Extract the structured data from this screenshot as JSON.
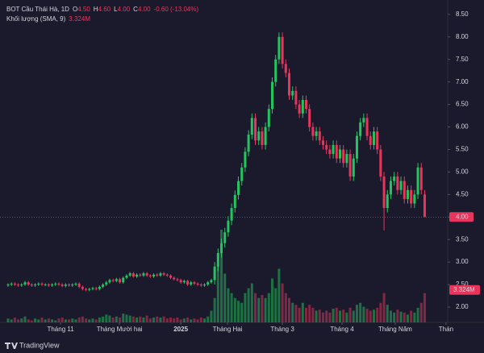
{
  "chart_data": {
    "type": "candlestick",
    "header": {
      "symbol": "BOT Cầu Thái Hà, 1D",
      "items": [
        {
          "key": "O",
          "value": "4.50"
        },
        {
          "key": "H",
          "value": "4.60"
        },
        {
          "key": "L",
          "value": "4.00"
        },
        {
          "key": "C",
          "value": "4.00"
        }
      ],
      "change": "-0.60 (-13.04%)",
      "volume_title": "Khối lượng (SMA, 9)"
    },
    "colors": {
      "up": "#22c55e",
      "down": "#e8355c",
      "background": "#1b1a2c"
    },
    "open": [
      2.48,
      2.5,
      2.52,
      2.5,
      2.48,
      2.5,
      2.55,
      2.5,
      2.48,
      2.5,
      2.52,
      2.5,
      2.5,
      2.48,
      2.5,
      2.52,
      2.5,
      2.47,
      2.5,
      2.48,
      2.5,
      2.52,
      2.45,
      2.4,
      2.38,
      2.4,
      2.42,
      2.4,
      2.45,
      2.5,
      2.55,
      2.6,
      2.58,
      2.62,
      2.55,
      2.65,
      2.7,
      2.75,
      2.68,
      2.72,
      2.7,
      2.75,
      2.7,
      2.68,
      2.72,
      2.7,
      2.75,
      2.72,
      2.7,
      2.65,
      2.62,
      2.6,
      2.55,
      2.58,
      2.5,
      2.55,
      2.52,
      2.5,
      2.48,
      2.5,
      2.55,
      2.6,
      2.9,
      3.2,
      3.42,
      3.66,
      3.92,
      4.2,
      4.49,
      4.8,
      5.1,
      5.45,
      5.83,
      6.2,
      5.7,
      5.9,
      5.6,
      6.0,
      6.4,
      7.0,
      7.5,
      8.0,
      7.4,
      7.2,
      6.7,
      6.8,
      6.5,
      6.3,
      6.6,
      6.4,
      6.0,
      5.8,
      5.9,
      5.7,
      5.6,
      5.5,
      5.4,
      5.6,
      5.3,
      5.5,
      5.2,
      5.4,
      4.9,
      5.3,
      5.8,
      6.1,
      6.2,
      5.8,
      5.6,
      5.9,
      5.5,
      4.9,
      4.2,
      4.5,
      4.8,
      4.9,
      4.6,
      4.8,
      4.4,
      4.6,
      4.3,
      4.5,
      5.1,
      4.5
    ],
    "high": [
      2.53,
      2.55,
      2.55,
      2.53,
      2.53,
      2.58,
      2.58,
      2.53,
      2.53,
      2.55,
      2.55,
      2.53,
      2.53,
      2.53,
      2.55,
      2.55,
      2.53,
      2.53,
      2.53,
      2.53,
      2.55,
      2.55,
      2.48,
      2.43,
      2.43,
      2.45,
      2.45,
      2.48,
      2.53,
      2.58,
      2.63,
      2.63,
      2.65,
      2.65,
      2.68,
      2.73,
      2.78,
      2.78,
      2.75,
      2.75,
      2.78,
      2.78,
      2.73,
      2.75,
      2.75,
      2.78,
      2.78,
      2.75,
      2.73,
      2.68,
      2.65,
      2.63,
      2.61,
      2.61,
      2.58,
      2.58,
      2.55,
      2.53,
      2.53,
      2.58,
      2.63,
      3.0,
      3.3,
      3.52,
      3.76,
      4.02,
      4.3,
      4.59,
      4.9,
      5.2,
      5.55,
      5.93,
      6.3,
      6.3,
      6.0,
      6.0,
      6.1,
      6.5,
      7.1,
      7.6,
      8.1,
      8.1,
      7.5,
      7.3,
      6.9,
      6.9,
      6.6,
      6.7,
      6.7,
      6.5,
      6.1,
      6.0,
      6.0,
      5.8,
      5.7,
      5.6,
      5.7,
      5.7,
      5.6,
      5.6,
      5.5,
      5.5,
      5.4,
      5.9,
      6.2,
      6.3,
      6.3,
      5.9,
      6.0,
      6.0,
      5.6,
      5.0,
      4.6,
      4.9,
      5.0,
      5.0,
      4.9,
      4.9,
      4.7,
      4.7,
      4.6,
      5.2,
      5.2,
      4.6
    ],
    "low": [
      2.45,
      2.47,
      2.47,
      2.45,
      2.45,
      2.47,
      2.47,
      2.45,
      2.45,
      2.47,
      2.47,
      2.47,
      2.45,
      2.45,
      2.47,
      2.47,
      2.44,
      2.44,
      2.45,
      2.45,
      2.47,
      2.42,
      2.37,
      2.35,
      2.35,
      2.37,
      2.37,
      2.37,
      2.42,
      2.47,
      2.52,
      2.55,
      2.55,
      2.52,
      2.52,
      2.62,
      2.67,
      2.65,
      2.65,
      2.67,
      2.67,
      2.67,
      2.65,
      2.65,
      2.67,
      2.67,
      2.69,
      2.67,
      2.62,
      2.59,
      2.57,
      2.52,
      2.52,
      2.47,
      2.47,
      2.49,
      2.47,
      2.45,
      2.45,
      2.47,
      2.52,
      2.5,
      2.8,
      3.1,
      3.32,
      3.56,
      3.82,
      4.1,
      4.39,
      4.7,
      5.0,
      5.35,
      5.73,
      5.6,
      5.6,
      5.5,
      5.5,
      5.9,
      6.3,
      6.9,
      7.4,
      7.3,
      7.1,
      6.6,
      6.6,
      6.4,
      6.2,
      6.2,
      6.3,
      5.9,
      5.7,
      5.7,
      5.6,
      5.5,
      5.4,
      5.3,
      5.3,
      5.2,
      5.2,
      5.1,
      5.1,
      4.8,
      4.8,
      5.2,
      5.7,
      6.0,
      5.7,
      5.5,
      5.5,
      5.4,
      4.8,
      3.7,
      4.1,
      4.4,
      4.7,
      4.5,
      4.5,
      4.3,
      4.3,
      4.2,
      4.2,
      4.4,
      4.5,
      4.0
    ],
    "close": [
      2.5,
      2.52,
      2.5,
      2.48,
      2.5,
      2.55,
      2.5,
      2.48,
      2.5,
      2.52,
      2.5,
      2.5,
      2.48,
      2.5,
      2.52,
      2.5,
      2.47,
      2.5,
      2.48,
      2.5,
      2.52,
      2.45,
      2.4,
      2.38,
      2.4,
      2.42,
      2.4,
      2.45,
      2.5,
      2.55,
      2.6,
      2.58,
      2.62,
      2.55,
      2.65,
      2.7,
      2.75,
      2.68,
      2.72,
      2.7,
      2.75,
      2.7,
      2.68,
      2.72,
      2.7,
      2.75,
      2.72,
      2.7,
      2.65,
      2.62,
      2.6,
      2.55,
      2.58,
      2.5,
      2.55,
      2.52,
      2.5,
      2.48,
      2.5,
      2.55,
      2.6,
      2.9,
      3.2,
      3.42,
      3.66,
      3.92,
      4.2,
      4.49,
      4.8,
      5.1,
      5.45,
      5.83,
      6.2,
      5.7,
      5.9,
      5.6,
      6.0,
      6.4,
      7.0,
      7.5,
      8.0,
      7.4,
      7.2,
      6.7,
      6.8,
      6.5,
      6.3,
      6.6,
      6.4,
      6.0,
      5.8,
      5.9,
      5.7,
      5.6,
      5.5,
      5.4,
      5.6,
      5.3,
      5.5,
      5.2,
      5.4,
      4.9,
      5.3,
      5.8,
      6.1,
      6.2,
      5.8,
      5.6,
      5.9,
      5.5,
      4.9,
      4.2,
      4.5,
      4.8,
      4.9,
      4.6,
      4.8,
      4.4,
      4.6,
      4.3,
      4.5,
      5.1,
      4.6,
      4.0
    ],
    "volume": [
      0.4,
      0.3,
      0.5,
      0.3,
      0.4,
      0.6,
      0.3,
      0.2,
      0.4,
      0.3,
      0.5,
      0.3,
      0.4,
      0.3,
      0.2,
      0.4,
      0.5,
      0.3,
      0.3,
      0.4,
      0.3,
      0.5,
      0.6,
      0.4,
      0.3,
      0.4,
      0.3,
      0.5,
      0.6,
      0.8,
      0.7,
      0.5,
      0.6,
      0.5,
      0.9,
      0.8,
      0.7,
      0.6,
      0.5,
      0.6,
      0.5,
      0.7,
      0.4,
      0.5,
      0.6,
      0.5,
      0.6,
      0.4,
      0.5,
      0.4,
      0.5,
      0.3,
      0.4,
      0.5,
      0.3,
      0.4,
      0.3,
      0.5,
      0.4,
      0.6,
      1.2,
      2.5,
      6.0,
      9.5,
      5.0,
      3.5,
      3.0,
      2.5,
      2.2,
      2.0,
      3.0,
      3.5,
      4.0,
      3.0,
      2.5,
      2.8,
      2.5,
      3.0,
      4.5,
      3.5,
      5.5,
      4.0,
      3.0,
      2.5,
      2.0,
      1.8,
      1.5,
      2.0,
      1.5,
      1.8,
      1.5,
      1.2,
      1.3,
      1.0,
      1.2,
      1.0,
      1.4,
      1.5,
      1.2,
      1.3,
      1.0,
      1.5,
      1.2,
      1.8,
      2.0,
      1.6,
      1.4,
      1.2,
      1.3,
      1.5,
      2.0,
      3.0,
      1.8,
      1.2,
      1.0,
      1.3,
      1.1,
      1.0,
      0.8,
      1.2,
      1.0,
      1.5,
      2.0,
      3.0
    ],
    "volume_sma": {
      "value": 3.324,
      "label": "3.324M"
    },
    "last_price": {
      "value": 4.0,
      "label": "4.00"
    },
    "ylim": [
      1.66,
      8.82
    ],
    "yticks": [
      {
        "value": 2.0,
        "label": "2.00"
      },
      {
        "value": 2.5,
        "label": "2.50"
      },
      {
        "value": 3.0,
        "label": "3.00"
      },
      {
        "value": 3.5,
        "label": "3.50"
      },
      {
        "value": 4.0,
        "label": "4.00"
      },
      {
        "value": 4.5,
        "label": "4.50"
      },
      {
        "value": 5.0,
        "label": "5.00"
      },
      {
        "value": 5.5,
        "label": "5.50"
      },
      {
        "value": 6.0,
        "label": "6.00"
      },
      {
        "value": 6.5,
        "label": "6.50"
      },
      {
        "value": 7.0,
        "label": "7.00"
      },
      {
        "value": 7.5,
        "label": "7.50"
      },
      {
        "value": 8.0,
        "label": "8.00"
      },
      {
        "value": 8.5,
        "label": "8.50"
      }
    ],
    "xlim": [
      -2.38,
      129.8
    ],
    "xticks": [
      {
        "value": 15.5,
        "label": "Tháng 11"
      },
      {
        "value": 32.9,
        "label": "Tháng Mười hai"
      },
      {
        "value": 51,
        "label": "2025"
      },
      {
        "value": 64.8,
        "label": "Tháng Hai"
      },
      {
        "value": 81,
        "label": "Tháng 3"
      },
      {
        "value": 98.6,
        "label": "Tháng 4"
      },
      {
        "value": 114.3,
        "label": "Tháng Năm"
      },
      {
        "value": 129.3,
        "label": "Thán"
      }
    ],
    "footer": "TradingView"
  }
}
